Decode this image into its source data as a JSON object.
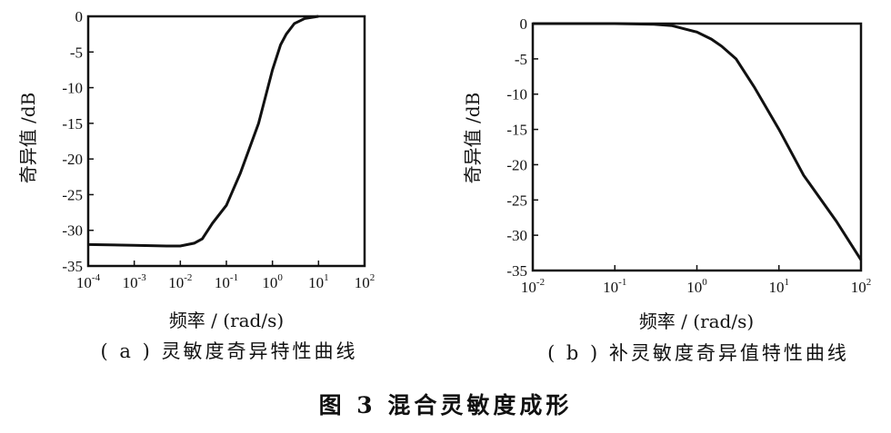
{
  "figure": {
    "title": "图 3  混合灵敏度成形"
  },
  "chart_data": [
    {
      "type": "line",
      "panel": "a",
      "caption": "( a ) 灵敏度奇异特性曲线",
      "xlabel": "频率 / (rad/s)",
      "ylabel": "奇异值 /dB",
      "xscale": "log",
      "xlim": [
        0.0001,
        100
      ],
      "ylim": [
        -35,
        0
      ],
      "xticks": [
        {
          "value": 0.0001,
          "base": "10",
          "exp": "-4"
        },
        {
          "value": 0.001,
          "base": "10",
          "exp": "-3"
        },
        {
          "value": 0.01,
          "base": "10",
          "exp": "-2"
        },
        {
          "value": 0.1,
          "base": "10",
          "exp": "-1"
        },
        {
          "value": 1,
          "base": "10",
          "exp": "0"
        },
        {
          "value": 10,
          "base": "10",
          "exp": "1"
        },
        {
          "value": 100,
          "base": "10",
          "exp": "2"
        }
      ],
      "yticks": [
        {
          "value": 0,
          "label": "0"
        },
        {
          "value": -5,
          "label": "-5"
        },
        {
          "value": -10,
          "label": "-10"
        },
        {
          "value": -15,
          "label": "-15"
        },
        {
          "value": -20,
          "label": "-20"
        },
        {
          "value": -25,
          "label": "-25"
        },
        {
          "value": -30,
          "label": "-30"
        },
        {
          "value": -35,
          "label": "-35"
        }
      ],
      "series": [
        {
          "x": [
            0.0001,
            0.001,
            0.005,
            0.01,
            0.02,
            0.03,
            0.05,
            0.1,
            0.2,
            0.5,
            1,
            1.5,
            2,
            3,
            5,
            10
          ],
          "y": [
            -32,
            -32.1,
            -32.2,
            -32.2,
            -31.8,
            -31.2,
            -29,
            -26.5,
            -22,
            -15,
            -7.5,
            -4,
            -2.5,
            -1,
            -0.3,
            0
          ]
        }
      ]
    },
    {
      "type": "line",
      "panel": "b",
      "caption": "( b ) 补灵敏度奇异值特性曲线",
      "xlabel": "频率 / (rad/s)",
      "ylabel": "奇异值 /dB",
      "xscale": "log",
      "xlim": [
        0.01,
        100
      ],
      "ylim": [
        -35,
        0
      ],
      "xticks": [
        {
          "value": 0.01,
          "base": "10",
          "exp": "-2"
        },
        {
          "value": 0.1,
          "base": "10",
          "exp": "-1"
        },
        {
          "value": 1,
          "base": "10",
          "exp": "0"
        },
        {
          "value": 10,
          "base": "10",
          "exp": "1"
        },
        {
          "value": 100,
          "base": "10",
          "exp": "2"
        }
      ],
      "yticks": [
        {
          "value": 0,
          "label": "0"
        },
        {
          "value": -5,
          "label": "-5"
        },
        {
          "value": -10,
          "label": "-10"
        },
        {
          "value": -15,
          "label": "-15"
        },
        {
          "value": -20,
          "label": "-20"
        },
        {
          "value": -25,
          "label": "-25"
        },
        {
          "value": -30,
          "label": "-30"
        },
        {
          "value": -35,
          "label": "-35"
        }
      ],
      "series": [
        {
          "x": [
            0.01,
            0.1,
            0.3,
            0.5,
            1,
            1.5,
            2,
            3,
            5,
            10,
            20,
            50,
            100
          ],
          "y": [
            0,
            0,
            -0.1,
            -0.3,
            -1.2,
            -2.2,
            -3.2,
            -5,
            -9,
            -15,
            -21.5,
            -28,
            -33.5
          ]
        }
      ]
    }
  ]
}
